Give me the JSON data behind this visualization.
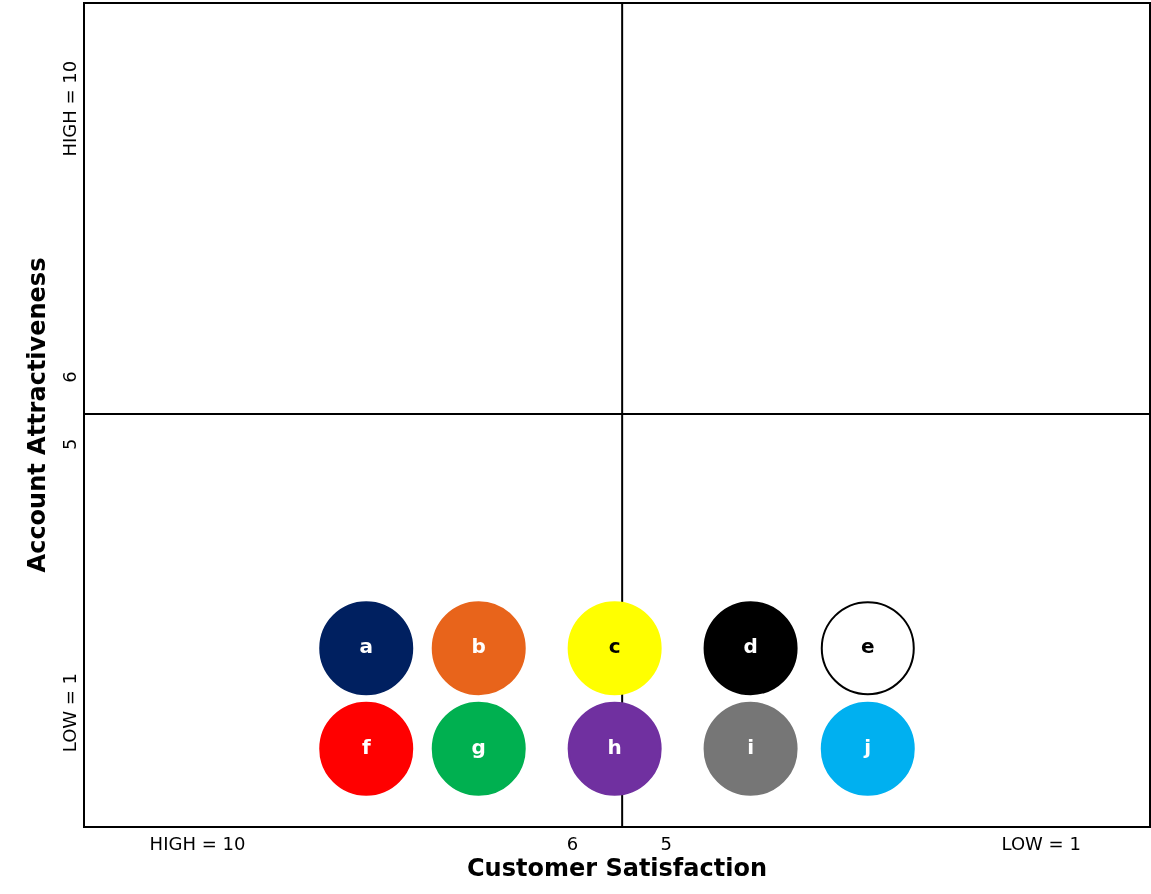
{
  "chart_data": {
    "type": "scatter",
    "xlabel": "Customer Satisfaction",
    "ylabel": "Account Attractiveness",
    "xlim": [
      11.2,
      -0.15
    ],
    "ylim": [
      -0.65,
      11.6
    ],
    "xticks": [
      {
        "value": 10,
        "label": "HIGH = 10"
      },
      6,
      5,
      {
        "value": 1,
        "label": "LOW = 1"
      }
    ],
    "yticks": [
      {
        "value": 1,
        "label": "LOW = 1"
      },
      5,
      6,
      {
        "value": 10,
        "label": "HIGH = 10"
      }
    ],
    "ref_lines": [
      {
        "axis": "x",
        "value": 5.47,
        "color": "#000000"
      },
      {
        "axis": "y",
        "value": 5.49,
        "color": "#000000"
      }
    ],
    "marker": "circle",
    "legend": false,
    "grid": false,
    "series": [
      {
        "name": "a",
        "color": "#002060",
        "x": [
          8.2
        ],
        "values": [
          2.0
        ]
      },
      {
        "name": "b",
        "color": "#e8641b",
        "x": [
          7.0
        ],
        "values": [
          2.0
        ]
      },
      {
        "name": "c",
        "color": "#ffff00",
        "x": [
          5.55
        ],
        "values": [
          2.0
        ]
      },
      {
        "name": "d",
        "color": "#000000",
        "x": [
          4.1
        ],
        "values": [
          2.0
        ]
      },
      {
        "name": "e",
        "color": "#ffffff",
        "x": [
          2.85
        ],
        "values": [
          2.0
        ]
      },
      {
        "name": "f",
        "color": "#ff0000",
        "x": [
          8.2
        ],
        "values": [
          0.5
        ]
      },
      {
        "name": "g",
        "color": "#00b050",
        "x": [
          7.0
        ],
        "values": [
          0.5
        ]
      },
      {
        "name": "h",
        "color": "#7030a0",
        "x": [
          5.55
        ],
        "values": [
          0.5
        ]
      },
      {
        "name": "i",
        "color": "#767676",
        "x": [
          4.1
        ],
        "values": [
          0.5
        ]
      },
      {
        "name": "j",
        "color": "#00b0f0",
        "x": [
          2.85
        ],
        "values": [
          0.5
        ]
      }
    ]
  }
}
